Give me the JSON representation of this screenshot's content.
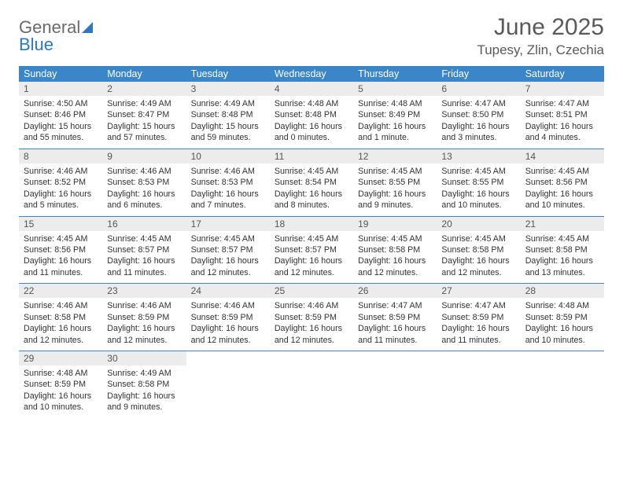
{
  "logo": {
    "text1": "General",
    "text2": "Blue"
  },
  "title": "June 2025",
  "location": "Tupesy, Zlin, Czechia",
  "colors": {
    "header_bg": "#3a86c8",
    "header_text": "#ffffff",
    "daynum_bg": "#ececec",
    "border": "#3a86c8",
    "logo_gray": "#6a6a6a",
    "logo_blue": "#2a79c2"
  },
  "day_names": [
    "Sunday",
    "Monday",
    "Tuesday",
    "Wednesday",
    "Thursday",
    "Friday",
    "Saturday"
  ],
  "weeks": [
    [
      {
        "n": "1",
        "sr": "Sunrise: 4:50 AM",
        "ss": "Sunset: 8:46 PM",
        "dl": "Daylight: 15 hours and 55 minutes."
      },
      {
        "n": "2",
        "sr": "Sunrise: 4:49 AM",
        "ss": "Sunset: 8:47 PM",
        "dl": "Daylight: 15 hours and 57 minutes."
      },
      {
        "n": "3",
        "sr": "Sunrise: 4:49 AM",
        "ss": "Sunset: 8:48 PM",
        "dl": "Daylight: 15 hours and 59 minutes."
      },
      {
        "n": "4",
        "sr": "Sunrise: 4:48 AM",
        "ss": "Sunset: 8:48 PM",
        "dl": "Daylight: 16 hours and 0 minutes."
      },
      {
        "n": "5",
        "sr": "Sunrise: 4:48 AM",
        "ss": "Sunset: 8:49 PM",
        "dl": "Daylight: 16 hours and 1 minute."
      },
      {
        "n": "6",
        "sr": "Sunrise: 4:47 AM",
        "ss": "Sunset: 8:50 PM",
        "dl": "Daylight: 16 hours and 3 minutes."
      },
      {
        "n": "7",
        "sr": "Sunrise: 4:47 AM",
        "ss": "Sunset: 8:51 PM",
        "dl": "Daylight: 16 hours and 4 minutes."
      }
    ],
    [
      {
        "n": "8",
        "sr": "Sunrise: 4:46 AM",
        "ss": "Sunset: 8:52 PM",
        "dl": "Daylight: 16 hours and 5 minutes."
      },
      {
        "n": "9",
        "sr": "Sunrise: 4:46 AM",
        "ss": "Sunset: 8:53 PM",
        "dl": "Daylight: 16 hours and 6 minutes."
      },
      {
        "n": "10",
        "sr": "Sunrise: 4:46 AM",
        "ss": "Sunset: 8:53 PM",
        "dl": "Daylight: 16 hours and 7 minutes."
      },
      {
        "n": "11",
        "sr": "Sunrise: 4:45 AM",
        "ss": "Sunset: 8:54 PM",
        "dl": "Daylight: 16 hours and 8 minutes."
      },
      {
        "n": "12",
        "sr": "Sunrise: 4:45 AM",
        "ss": "Sunset: 8:55 PM",
        "dl": "Daylight: 16 hours and 9 minutes."
      },
      {
        "n": "13",
        "sr": "Sunrise: 4:45 AM",
        "ss": "Sunset: 8:55 PM",
        "dl": "Daylight: 16 hours and 10 minutes."
      },
      {
        "n": "14",
        "sr": "Sunrise: 4:45 AM",
        "ss": "Sunset: 8:56 PM",
        "dl": "Daylight: 16 hours and 10 minutes."
      }
    ],
    [
      {
        "n": "15",
        "sr": "Sunrise: 4:45 AM",
        "ss": "Sunset: 8:56 PM",
        "dl": "Daylight: 16 hours and 11 minutes."
      },
      {
        "n": "16",
        "sr": "Sunrise: 4:45 AM",
        "ss": "Sunset: 8:57 PM",
        "dl": "Daylight: 16 hours and 11 minutes."
      },
      {
        "n": "17",
        "sr": "Sunrise: 4:45 AM",
        "ss": "Sunset: 8:57 PM",
        "dl": "Daylight: 16 hours and 12 minutes."
      },
      {
        "n": "18",
        "sr": "Sunrise: 4:45 AM",
        "ss": "Sunset: 8:57 PM",
        "dl": "Daylight: 16 hours and 12 minutes."
      },
      {
        "n": "19",
        "sr": "Sunrise: 4:45 AM",
        "ss": "Sunset: 8:58 PM",
        "dl": "Daylight: 16 hours and 12 minutes."
      },
      {
        "n": "20",
        "sr": "Sunrise: 4:45 AM",
        "ss": "Sunset: 8:58 PM",
        "dl": "Daylight: 16 hours and 12 minutes."
      },
      {
        "n": "21",
        "sr": "Sunrise: 4:45 AM",
        "ss": "Sunset: 8:58 PM",
        "dl": "Daylight: 16 hours and 13 minutes."
      }
    ],
    [
      {
        "n": "22",
        "sr": "Sunrise: 4:46 AM",
        "ss": "Sunset: 8:58 PM",
        "dl": "Daylight: 16 hours and 12 minutes."
      },
      {
        "n": "23",
        "sr": "Sunrise: 4:46 AM",
        "ss": "Sunset: 8:59 PM",
        "dl": "Daylight: 16 hours and 12 minutes."
      },
      {
        "n": "24",
        "sr": "Sunrise: 4:46 AM",
        "ss": "Sunset: 8:59 PM",
        "dl": "Daylight: 16 hours and 12 minutes."
      },
      {
        "n": "25",
        "sr": "Sunrise: 4:46 AM",
        "ss": "Sunset: 8:59 PM",
        "dl": "Daylight: 16 hours and 12 minutes."
      },
      {
        "n": "26",
        "sr": "Sunrise: 4:47 AM",
        "ss": "Sunset: 8:59 PM",
        "dl": "Daylight: 16 hours and 11 minutes."
      },
      {
        "n": "27",
        "sr": "Sunrise: 4:47 AM",
        "ss": "Sunset: 8:59 PM",
        "dl": "Daylight: 16 hours and 11 minutes."
      },
      {
        "n": "28",
        "sr": "Sunrise: 4:48 AM",
        "ss": "Sunset: 8:59 PM",
        "dl": "Daylight: 16 hours and 10 minutes."
      }
    ],
    [
      {
        "n": "29",
        "sr": "Sunrise: 4:48 AM",
        "ss": "Sunset: 8:59 PM",
        "dl": "Daylight: 16 hours and 10 minutes."
      },
      {
        "n": "30",
        "sr": "Sunrise: 4:49 AM",
        "ss": "Sunset: 8:58 PM",
        "dl": "Daylight: 16 hours and 9 minutes."
      },
      {
        "empty": true
      },
      {
        "empty": true
      },
      {
        "empty": true
      },
      {
        "empty": true
      },
      {
        "empty": true
      }
    ]
  ]
}
